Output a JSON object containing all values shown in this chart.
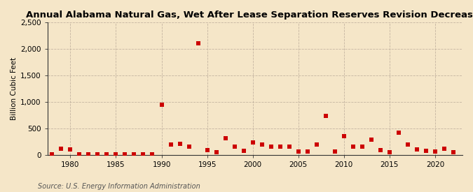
{
  "title": "Annual Alabama Natural Gas, Wet After Lease Separation Reserves Revision Decreases",
  "ylabel": "Billion Cubic Feet",
  "source": "Source: U.S. Energy Information Administration",
  "background_color": "#f5e6c8",
  "marker_color": "#cc0000",
  "xlim": [
    1977.5,
    2023
  ],
  "ylim": [
    0,
    2500
  ],
  "yticks": [
    0,
    500,
    1000,
    1500,
    2000,
    2500
  ],
  "ytick_labels": [
    "0",
    "500",
    "1,000",
    "1,500",
    "2,000",
    "2,500"
  ],
  "xticks": [
    1980,
    1985,
    1990,
    1995,
    2000,
    2005,
    2010,
    2015,
    2020
  ],
  "years": [
    1978,
    1979,
    1980,
    1981,
    1982,
    1983,
    1984,
    1985,
    1986,
    1987,
    1988,
    1989,
    1990,
    1991,
    1992,
    1993,
    1994,
    1995,
    1996,
    1997,
    1998,
    1999,
    2000,
    2001,
    2002,
    2003,
    2004,
    2005,
    2006,
    2007,
    2008,
    2009,
    2010,
    2011,
    2012,
    2013,
    2014,
    2015,
    2016,
    2017,
    2018,
    2019,
    2020,
    2021,
    2022
  ],
  "values": [
    5,
    120,
    100,
    5,
    5,
    5,
    5,
    5,
    5,
    5,
    5,
    5,
    950,
    200,
    210,
    160,
    2100,
    90,
    55,
    310,
    160,
    80,
    230,
    200,
    150,
    160,
    150,
    60,
    60,
    200,
    740,
    60,
    350,
    160,
    155,
    290,
    90,
    55,
    420,
    200,
    100,
    70,
    60,
    115,
    50
  ],
  "title_fontsize": 9.5,
  "tick_fontsize": 7.5,
  "ylabel_fontsize": 7.5,
  "source_fontsize": 7
}
